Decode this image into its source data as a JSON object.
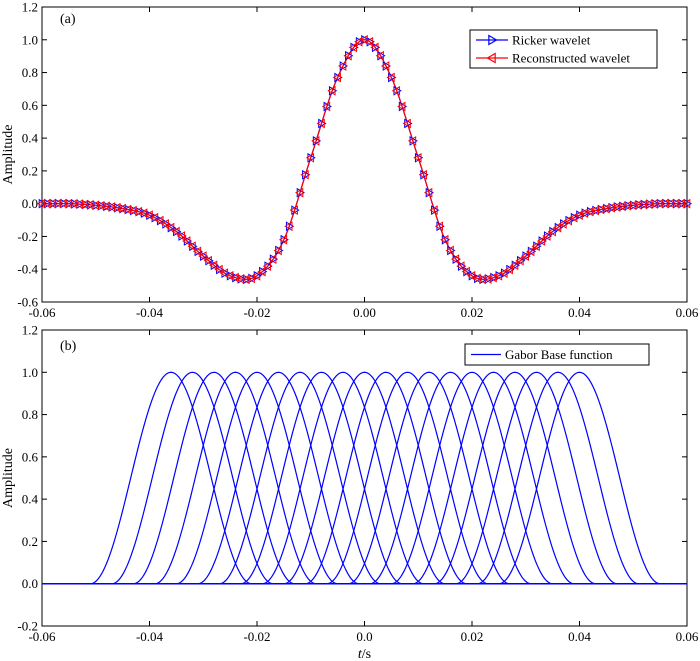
{
  "chart_data": [
    {
      "type": "line",
      "panel_label": "(a)",
      "ylabel": "Amplitude",
      "xlabel": "",
      "xlim": [
        -0.06,
        0.06
      ],
      "ylim": [
        -0.6,
        1.2
      ],
      "xticks": [
        "-0.06",
        "-0.04",
        "-0.02",
        "0.00",
        "0.02",
        "0.04",
        "0.06"
      ],
      "yticks": [
        "-0.6",
        "-0.4",
        "-0.2",
        "0.0",
        "0.2",
        "0.4",
        "0.6",
        "0.8",
        "1.0",
        "1.2"
      ],
      "grid": false,
      "legend_position": "top-right",
      "t": [
        -0.06,
        -0.055,
        -0.05,
        -0.045,
        -0.04,
        -0.035,
        -0.03,
        -0.025,
        -0.02,
        -0.015,
        -0.01,
        -0.005,
        0.0,
        0.005,
        0.01,
        0.015,
        0.02,
        0.025,
        0.03,
        0.035,
        0.04,
        0.045,
        0.05,
        0.055,
        0.06
      ],
      "series": [
        {
          "name": "Ricker wavelet",
          "color": "#0000ff",
          "marker": "triangle-right",
          "values": [
            0.0,
            0.0,
            -0.01,
            -0.03,
            -0.07,
            -0.17,
            -0.32,
            -0.44,
            -0.44,
            -0.22,
            0.28,
            0.77,
            1.0,
            0.77,
            0.28,
            -0.22,
            -0.44,
            -0.44,
            -0.32,
            -0.17,
            -0.07,
            -0.03,
            -0.01,
            0.0,
            0.0
          ]
        },
        {
          "name": "Reconstructed wavelet",
          "color": "#ff0000",
          "marker": "triangle-left",
          "values": [
            0.0,
            0.0,
            -0.01,
            -0.03,
            -0.07,
            -0.17,
            -0.32,
            -0.44,
            -0.44,
            -0.22,
            0.28,
            0.77,
            1.0,
            0.77,
            0.28,
            -0.22,
            -0.44,
            -0.44,
            -0.32,
            -0.17,
            -0.07,
            -0.03,
            -0.01,
            0.0,
            0.0
          ]
        }
      ]
    },
    {
      "type": "line",
      "panel_label": "(b)",
      "ylabel": "Amplitude",
      "xlabel_italic": "t",
      "xlabel_rest": "/s",
      "xlim": [
        -0.06,
        0.06
      ],
      "ylim": [
        -0.2,
        1.2
      ],
      "xticks": [
        "-0.06",
        "-0.04",
        "-0.02",
        "0.0",
        "0.02",
        "0.04",
        "0.06"
      ],
      "yticks": [
        "-0.2",
        "0.0",
        "0.2",
        "0.4",
        "0.6",
        "0.8",
        "1.0",
        "1.2"
      ],
      "grid": false,
      "legend_position": "top-right",
      "series": [
        {
          "name": "Gabor Base function",
          "color": "#0000ff",
          "peak": 1.0,
          "half_width": 0.015,
          "centers": [
            -0.036,
            -0.032,
            -0.028,
            -0.024,
            -0.02,
            -0.016,
            -0.012,
            -0.008,
            -0.004,
            0.0,
            0.004,
            0.008,
            0.012,
            0.016,
            0.02,
            0.024,
            0.028,
            0.032,
            0.036,
            0.04
          ]
        }
      ]
    }
  ]
}
